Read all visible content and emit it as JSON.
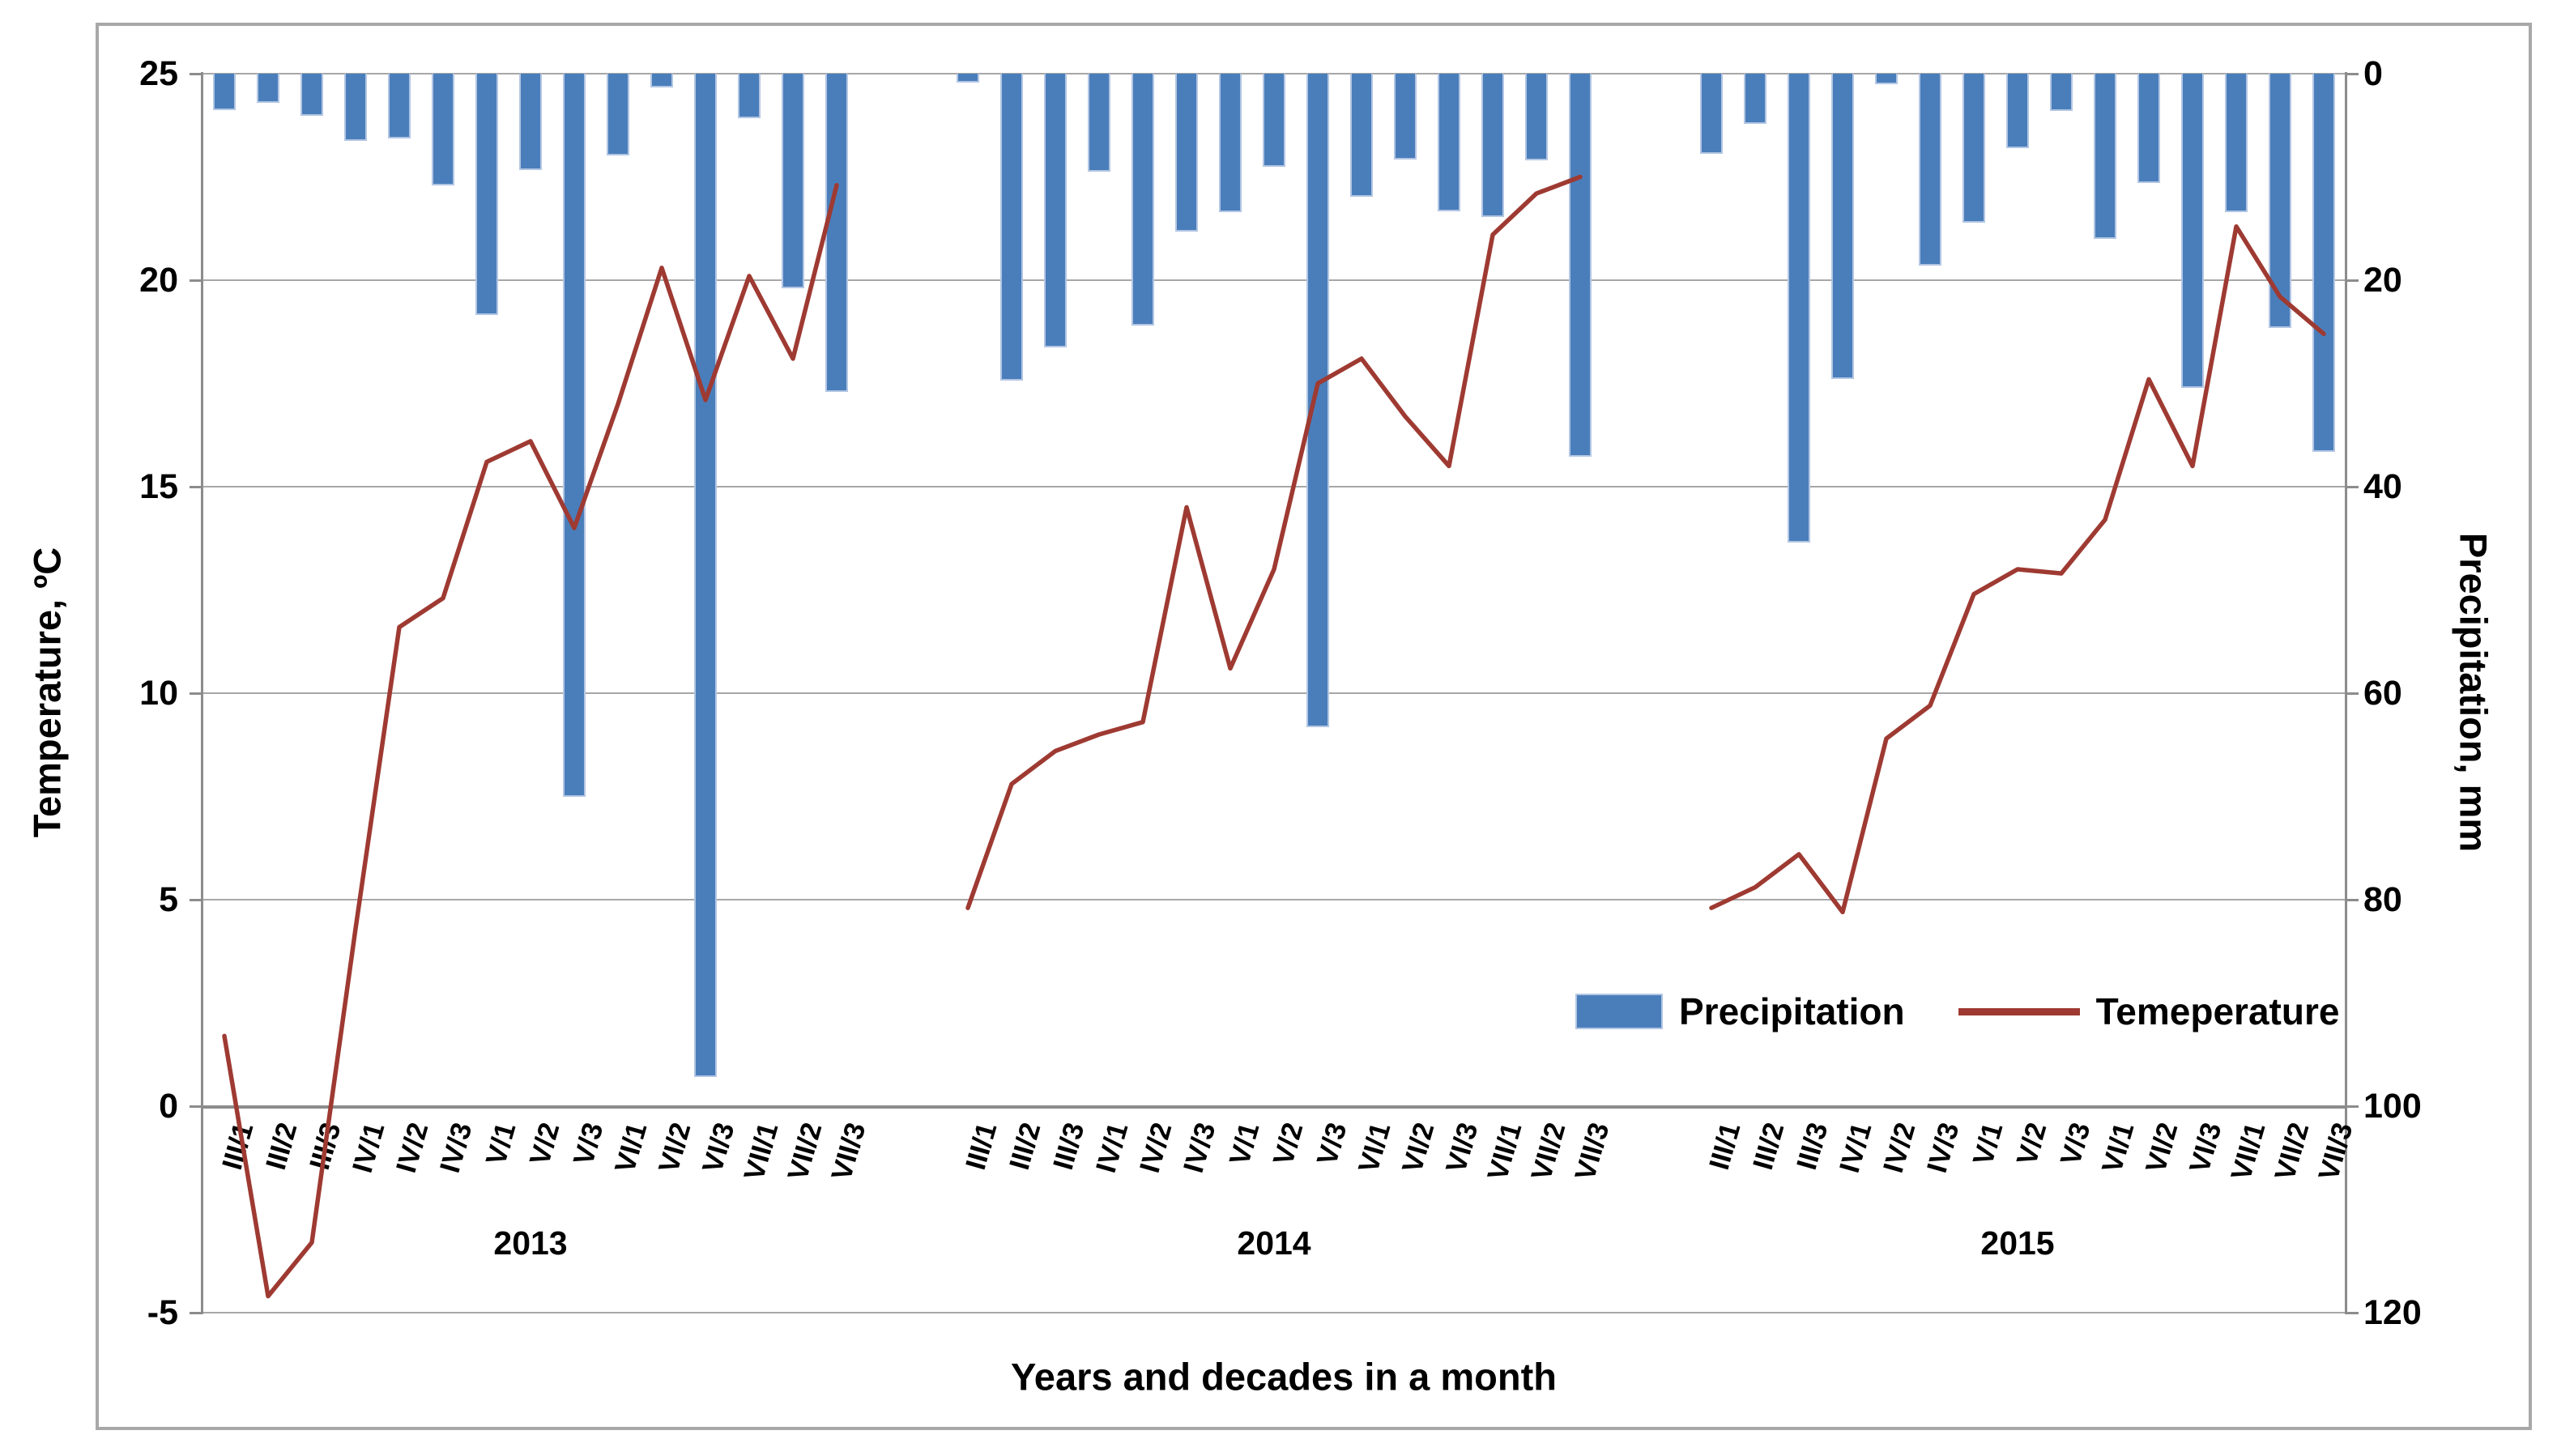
{
  "chart_data": {
    "type": "combo-bar-line",
    "x_axis": {
      "title": "Years and decades in a month",
      "decade_labels": [
        "III/1",
        "III/2",
        "III/3",
        "IV/1",
        "IV/2",
        "IV/3",
        "V/1",
        "V/2",
        "V/3",
        "VI/1",
        "VI/2",
        "VI/3",
        "VII/1",
        "VII/2",
        "VII/3"
      ],
      "years": [
        "2013",
        "2014",
        "2015"
      ]
    },
    "left_axis": {
      "title": "Temperature, ºC",
      "min": -5,
      "max": 25,
      "step": 5,
      "ticks": [
        25,
        20,
        15,
        10,
        5,
        0,
        -5
      ]
    },
    "right_axis": {
      "title": "Precipitation, mm",
      "min": 0,
      "max": 120,
      "step": 20,
      "inverted": true,
      "ticks": [
        0,
        20,
        40,
        60,
        80,
        100,
        120
      ]
    },
    "legend": {
      "position": "inside-bottom-right"
    },
    "grid": "horizontal",
    "colors": {
      "bar": "#4a7ebb",
      "bar_edge": "#b3c6e3",
      "line": "#9e3a32",
      "gridline": "#a7a7a7",
      "axis": "#8c8c8c"
    },
    "series": [
      {
        "name": "Precipitation",
        "type": "bar",
        "axis": "right",
        "unit": "mm",
        "values_by_year": {
          "2013": [
            3.5,
            2.8,
            4.1,
            6.5,
            6.3,
            10.8,
            23.4,
            9.3,
            70.0,
            7.9,
            1.3,
            97.2,
            4.3,
            20.8,
            30.8
          ],
          "2014": [
            0.9,
            29.7,
            26.5,
            9.5,
            24.4,
            15.3,
            13.4,
            9.0,
            63.3,
            11.9,
            8.3,
            13.3,
            13.9,
            8.4,
            37.1
          ],
          "2015": [
            7.8,
            4.9,
            45.4,
            29.6,
            1.0,
            18.6,
            14.4,
            7.2,
            3.6,
            16.0,
            10.6,
            30.4,
            13.4,
            24.6,
            36.6
          ]
        }
      },
      {
        "name": "Temeperature",
        "type": "line",
        "axis": "left",
        "unit": "°C",
        "values_by_year": {
          "2013": [
            1.7,
            -4.6,
            -3.3,
            4.3,
            11.6,
            12.3,
            15.6,
            16.1,
            14.0,
            17.0,
            20.3,
            17.1,
            20.1,
            18.1,
            22.3
          ],
          "2014": [
            4.8,
            7.8,
            8.6,
            9.0,
            9.3,
            14.5,
            10.6,
            13.0,
            17.5,
            18.1,
            16.7,
            15.5,
            21.1,
            22.1,
            22.5
          ],
          "2015": [
            4.8,
            5.3,
            6.1,
            4.7,
            8.9,
            9.7,
            12.4,
            13.0,
            12.9,
            14.2,
            17.6,
            15.5,
            21.3,
            19.6,
            18.7
          ]
        }
      }
    ]
  }
}
